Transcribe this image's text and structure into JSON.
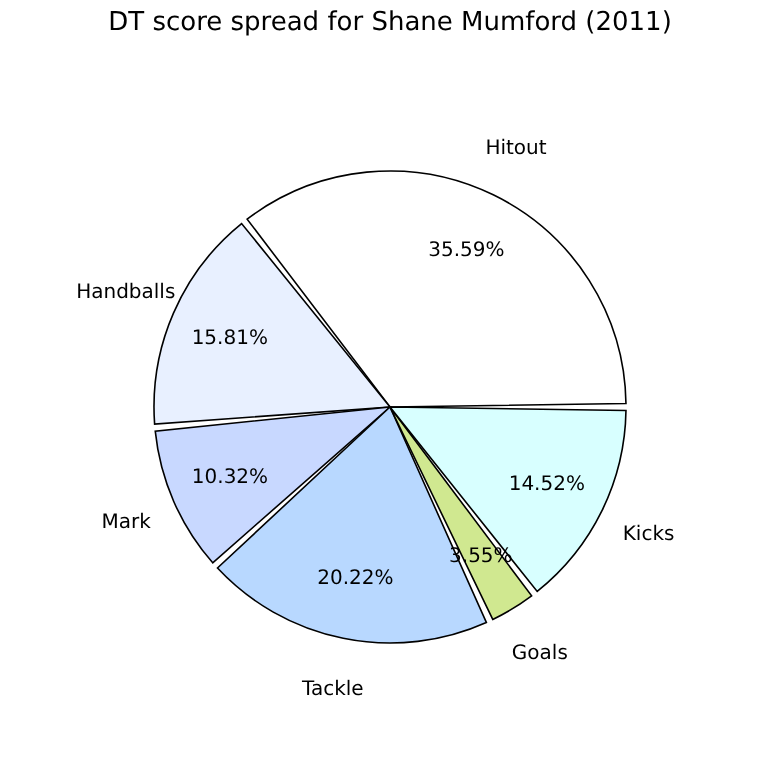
{
  "chart_data": {
    "type": "pie",
    "title": "DT score spread for Shane Mumford (2011)",
    "categories": [
      "Hitout",
      "Handballs",
      "Mark",
      "Tackle",
      "Goals",
      "Kicks"
    ],
    "values": [
      35.59,
      15.81,
      10.32,
      20.22,
      3.55,
      14.52
    ],
    "colors": [
      "#ffffff",
      "#e8f0ff",
      "#c8d8ff",
      "#b8d8ff",
      "#d0e890",
      "#d8ffff"
    ],
    "value_labels": [
      "35.59%",
      "15.81%",
      "10.32%",
      "20.22%",
      "3.55%",
      "14.52%"
    ],
    "legend": false
  }
}
